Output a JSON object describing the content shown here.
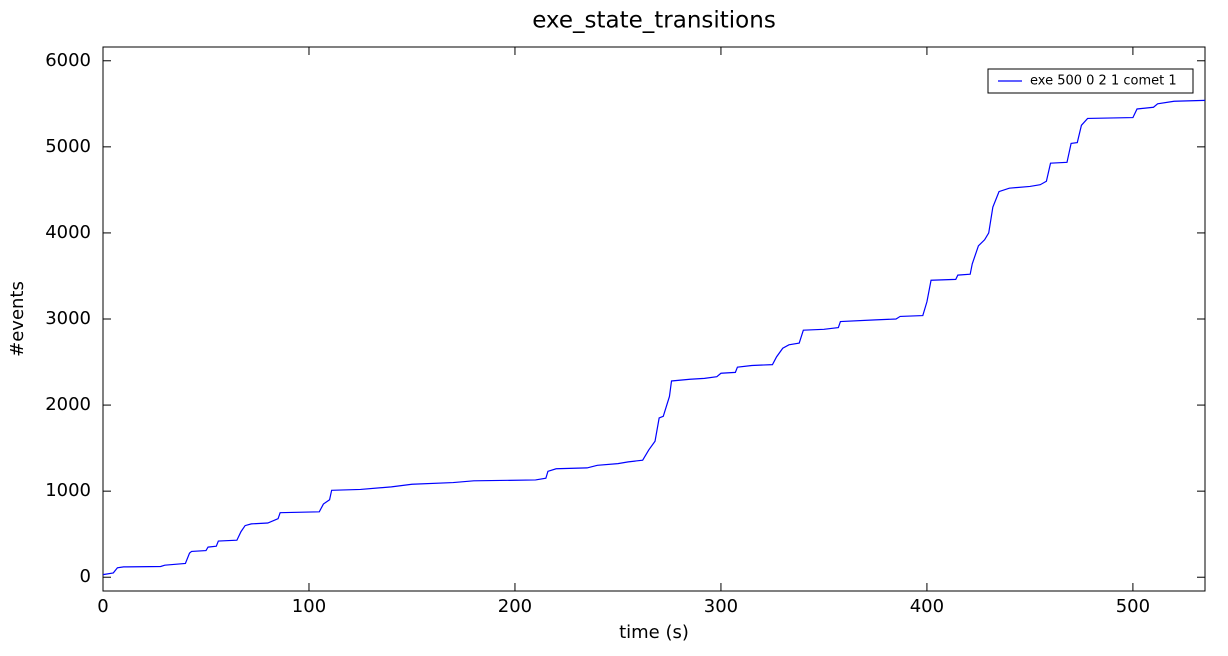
{
  "chart_data": {
    "type": "line",
    "title": "exe_state_transitions",
    "x_label": "time (s)",
    "y_label": "#events",
    "x": [
      0,
      5,
      7,
      10,
      28,
      30,
      40,
      42,
      43,
      50,
      51,
      55,
      56,
      65,
      67,
      69,
      72,
      80,
      85,
      86,
      105,
      107,
      110,
      111,
      125,
      140,
      150,
      170,
      180,
      210,
      215,
      216,
      220,
      235,
      240,
      250,
      255,
      262,
      265,
      268,
      270,
      272,
      275,
      276,
      285,
      292,
      298,
      300,
      307,
      308,
      315,
      325,
      327,
      330,
      333,
      338,
      340,
      350,
      357,
      358,
      375,
      385,
      387,
      398,
      400,
      402,
      414,
      415,
      421,
      422,
      425,
      428,
      430,
      432,
      435,
      440,
      450,
      455,
      458,
      460,
      468,
      470,
      473,
      475,
      478,
      500,
      502,
      510,
      512,
      520,
      535
    ],
    "series": [
      {
        "name": "exe 500 0 2 1 comet 1",
        "color": "#0000ff",
        "values": [
          30,
          50,
          110,
          120,
          125,
          140,
          160,
          280,
          300,
          310,
          350,
          360,
          420,
          430,
          530,
          600,
          620,
          630,
          680,
          750,
          760,
          850,
          900,
          1010,
          1020,
          1050,
          1080,
          1100,
          1120,
          1130,
          1150,
          1230,
          1260,
          1270,
          1300,
          1320,
          1340,
          1360,
          1480,
          1580,
          1850,
          1870,
          2100,
          2280,
          2300,
          2310,
          2330,
          2370,
          2380,
          2440,
          2460,
          2470,
          2560,
          2660,
          2700,
          2720,
          2870,
          2880,
          2900,
          2970,
          2990,
          3000,
          3030,
          3040,
          3200,
          3450,
          3460,
          3510,
          3520,
          3640,
          3850,
          3920,
          4000,
          4300,
          4480,
          4520,
          4540,
          4560,
          4600,
          4810,
          4820,
          5040,
          5050,
          5250,
          5330,
          5340,
          5440,
          5460,
          5500,
          5530,
          5540
        ]
      }
    ],
    "xlim": [
      0,
      535
    ],
    "xticks": [
      0,
      100,
      200,
      300,
      400,
      500
    ],
    "ylim": [
      -160,
      6160
    ],
    "yticks": [
      0,
      1000,
      2000,
      3000,
      4000,
      5000,
      6000
    ],
    "legend": "upper right"
  }
}
